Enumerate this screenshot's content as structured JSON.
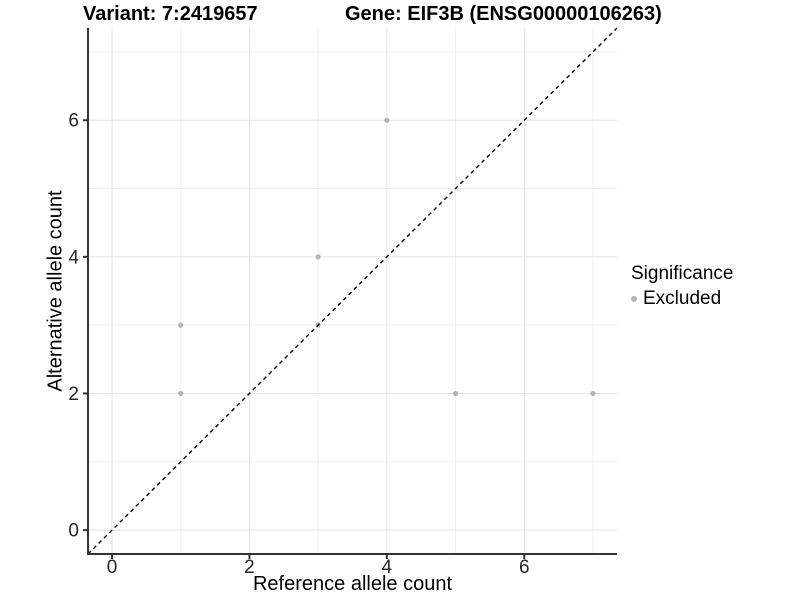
{
  "chart_data": {
    "type": "scatter",
    "title_left": "Variant: 7:2419657",
    "title_right": "Gene: EIF3B (ENSG00000106263)",
    "xlabel": "Reference allele count",
    "ylabel": "Alternative allele count",
    "xlim": [
      -0.35,
      7.35
    ],
    "ylim": [
      -0.35,
      7.35
    ],
    "xticks": [
      0,
      2,
      4,
      6
    ],
    "yticks": [
      0,
      2,
      4,
      6
    ],
    "minor_gridlines_x": [
      1,
      3,
      5,
      7
    ],
    "minor_gridlines_y": [
      1,
      3,
      5,
      7
    ],
    "grid": true,
    "legend": {
      "title": "Significance",
      "position": "right",
      "items": [
        {
          "label": "Excluded",
          "color": "#b3b3b3"
        }
      ]
    },
    "series": [
      {
        "name": "Excluded",
        "marker": "circle",
        "marker_radius": 2.6,
        "color": "#b3b3b3",
        "points": [
          [
            1,
            2
          ],
          [
            1,
            3
          ],
          [
            3,
            3
          ],
          [
            3,
            4
          ],
          [
            4,
            6
          ],
          [
            5,
            2
          ],
          [
            7,
            2
          ]
        ]
      }
    ],
    "reference_line": {
      "kind": "identity y=x",
      "style": "dashed",
      "color": "#000000",
      "x": [
        -0.35,
        7.35
      ],
      "y": [
        -0.35,
        7.35
      ]
    },
    "style_colors": {
      "grid_major": "#e4e4e4",
      "grid_minor": "#efefef",
      "axis_line": "#333333",
      "tick_text": "#262626",
      "background": "#ffffff"
    }
  }
}
